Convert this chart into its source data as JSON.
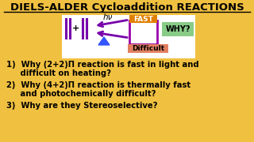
{
  "bg_color": "#F0C040",
  "title": "DIELS-ALDER Cycloaddition REACTIONS",
  "title_color": "#000000",
  "title_fontsize": 9.5,
  "line1a": "1)  Why (2+2)Π reaction is fast in light and",
  "line1b": "     difficult on heating?",
  "line2a": "2)  Why (4+2)Π reaction is thermally fast",
  "line2b": "     and photochemically difficult?",
  "line3": "3)  Why are they Stereoselective?",
  "text_fontsize": 7.2,
  "fast_color": "#E08000",
  "difficult_color": "#E08060",
  "why_bg": "#88CC88",
  "box_color": "#9900AA",
  "arrow_color": "#7700AA",
  "triangle_color": "#3355FF",
  "white_box_bg": "#FFFFFF",
  "diagram_bg": "#FFFFFF"
}
